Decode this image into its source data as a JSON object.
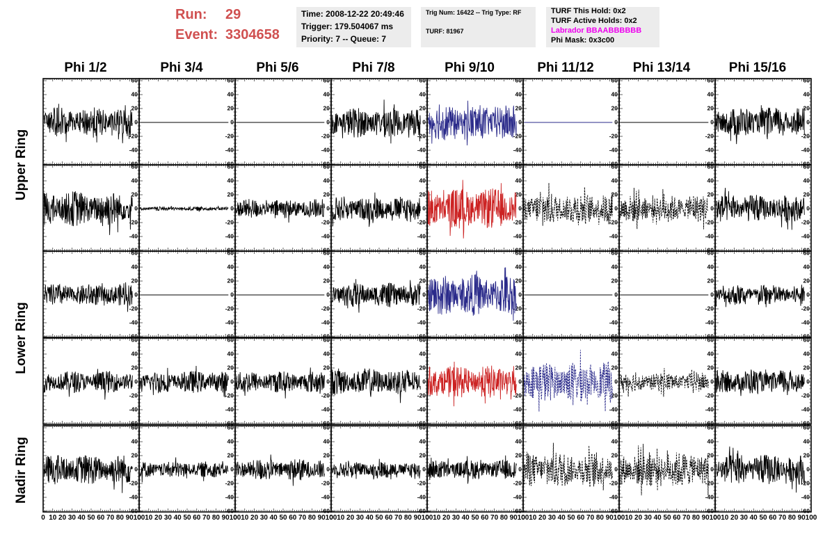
{
  "header": {
    "run_label": "Run:",
    "run_value": "29",
    "event_label": "Event:",
    "event_value": "3304658",
    "run_color": "#d05050"
  },
  "info_time": {
    "line1": "Time: 2008-12-22 20:49:46",
    "line2": "Trigger: 179.504067 ms",
    "line3": "Priority: 7 -- Queue: 7"
  },
  "info_trig": {
    "line1": "Trig Num: 16422 -- Trig Type: RF",
    "line2": "TURF: 81967"
  },
  "info_turf": {
    "line1": "TURF This Hold: 0x2",
    "line2": "TURF Active Holds: 0x2",
    "line3": "Labrador BBAABBBBBB",
    "line4": "Phi Mask: 0x3c00",
    "labrador_color": "#ee00ee"
  },
  "columns": [
    "Phi 1/2",
    "Phi 3/4",
    "Phi 5/6",
    "Phi 7/8",
    "Phi 9/10",
    "Phi 11/12",
    "Phi 13/14",
    "Phi 15/16"
  ],
  "rows": [
    "Upper Ring",
    "Lower Ring",
    "Nadir Ring"
  ],
  "chart_data": {
    "type": "line",
    "description_of_grid": "5 panel rows x 8 columns; Upper Ring spans panel rows 1-2, Lower Ring rows 3-4, Nadir Ring row 5",
    "xlim": [
      0,
      100
    ],
    "ylim": [
      -60,
      60
    ],
    "x_ticks": [
      "0",
      "10",
      "20",
      "30",
      "40",
      "50",
      "60",
      "70",
      "80",
      "90",
      "100"
    ],
    "y_ticks": [
      "60",
      "40",
      "20",
      "0",
      "-20",
      "-40",
      "-60"
    ],
    "panels": [
      [
        {
          "color": "#000000",
          "style": "solid",
          "amplitude": 22
        },
        {
          "color": "#000000",
          "style": "solid",
          "amplitude": 0
        },
        {
          "color": "#000000",
          "style": "solid",
          "amplitude": 0
        },
        {
          "color": "#000000",
          "style": "solid",
          "amplitude": 22
        },
        {
          "color": "#2a2a8a",
          "style": "solid",
          "amplitude": 26
        },
        {
          "color": "#2a2a8a",
          "style": "solid",
          "amplitude": 0
        },
        {
          "color": "#000000",
          "style": "solid",
          "amplitude": 0
        },
        {
          "color": "#000000",
          "style": "solid",
          "amplitude": 22
        }
      ],
      [
        {
          "color": "#000000",
          "style": "solid",
          "amplitude": 26
        },
        {
          "color": "#000000",
          "style": "solid",
          "amplitude": 3
        },
        {
          "color": "#000000",
          "style": "solid",
          "amplitude": 14
        },
        {
          "color": "#000000",
          "style": "solid",
          "amplitude": 18
        },
        {
          "color": "#cc2222",
          "style": "solid",
          "amplitude": 30
        },
        {
          "color": "#000000",
          "style": "dashed",
          "amplitude": 24
        },
        {
          "color": "#000000",
          "style": "dashed",
          "amplitude": 20
        },
        {
          "color": "#000000",
          "style": "solid",
          "amplitude": 20
        }
      ],
      [
        {
          "color": "#000000",
          "style": "solid",
          "amplitude": 16
        },
        {
          "color": "#000000",
          "style": "solid",
          "amplitude": 0
        },
        {
          "color": "#000000",
          "style": "solid",
          "amplitude": 0
        },
        {
          "color": "#000000",
          "style": "solid",
          "amplitude": 18
        },
        {
          "color": "#2a2a8a",
          "style": "solid",
          "amplitude": 30
        },
        {
          "color": "#000000",
          "style": "solid",
          "amplitude": 0
        },
        {
          "color": "#000000",
          "style": "solid",
          "amplitude": 0
        },
        {
          "color": "#000000",
          "style": "solid",
          "amplitude": 15
        }
      ],
      [
        {
          "color": "#000000",
          "style": "solid",
          "amplitude": 16
        },
        {
          "color": "#000000",
          "style": "solid",
          "amplitude": 16
        },
        {
          "color": "#000000",
          "style": "solid",
          "amplitude": 16
        },
        {
          "color": "#000000",
          "style": "solid",
          "amplitude": 20
        },
        {
          "color": "#cc2222",
          "style": "solid",
          "amplitude": 24
        },
        {
          "color": "#2a2a8a",
          "style": "dashed",
          "amplitude": 30
        },
        {
          "color": "#000000",
          "style": "dashed",
          "amplitude": 14
        },
        {
          "color": "#000000",
          "style": "solid",
          "amplitude": 18
        }
      ],
      [
        {
          "color": "#000000",
          "style": "solid",
          "amplitude": 22
        },
        {
          "color": "#000000",
          "style": "solid",
          "amplitude": 12
        },
        {
          "color": "#000000",
          "style": "solid",
          "amplitude": 16
        },
        {
          "color": "#000000",
          "style": "solid",
          "amplitude": 12
        },
        {
          "color": "#000000",
          "style": "solid",
          "amplitude": 14
        },
        {
          "color": "#000000",
          "style": "dashed",
          "amplitude": 26
        },
        {
          "color": "#000000",
          "style": "dashed",
          "amplitude": 26
        },
        {
          "color": "#000000",
          "style": "solid",
          "amplitude": 22
        }
      ]
    ]
  }
}
